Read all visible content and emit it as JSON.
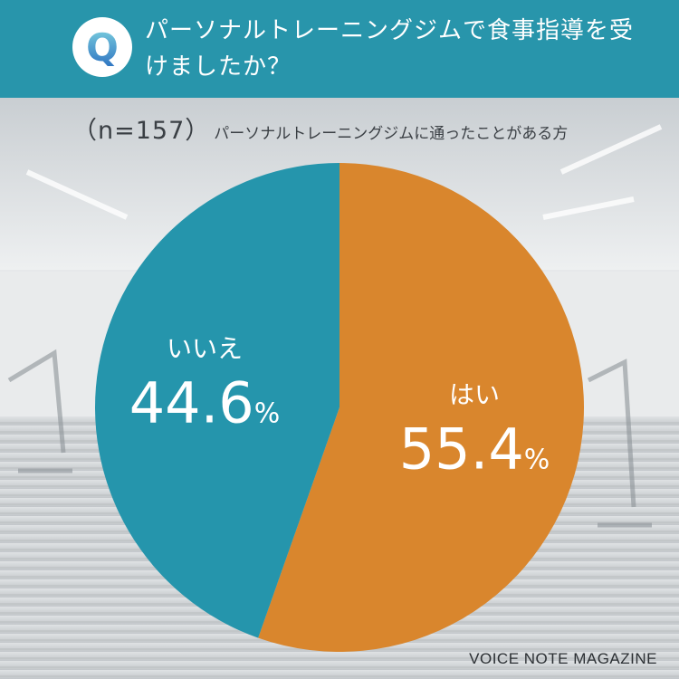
{
  "header": {
    "badge_letter": "Q",
    "title": "パーソナルトレーニングジムで食事指導を受けましたか？"
  },
  "subtitle": {
    "n_label": "（n=157）",
    "audience": "パーソナルトレーニングジムに通ったことがある方"
  },
  "chart_data": {
    "type": "pie",
    "title": "パーソナルトレーニングジムで食事指導を受けましたか？",
    "slices": [
      {
        "label": "はい",
        "value": 55.4,
        "display": "55.4%",
        "color": "#d9862d"
      },
      {
        "label": "いいえ",
        "value": 44.6,
        "display": "44.6%",
        "color": "#2595ac"
      }
    ]
  },
  "brand": "VOICE NOTE MAGAZINE",
  "colors": {
    "header_bg": "#2895ab",
    "yes": "#d9862d",
    "no": "#2595ac",
    "badge_gradient_top": "#7fd3e0",
    "badge_gradient_bottom": "#2a6fc0"
  }
}
